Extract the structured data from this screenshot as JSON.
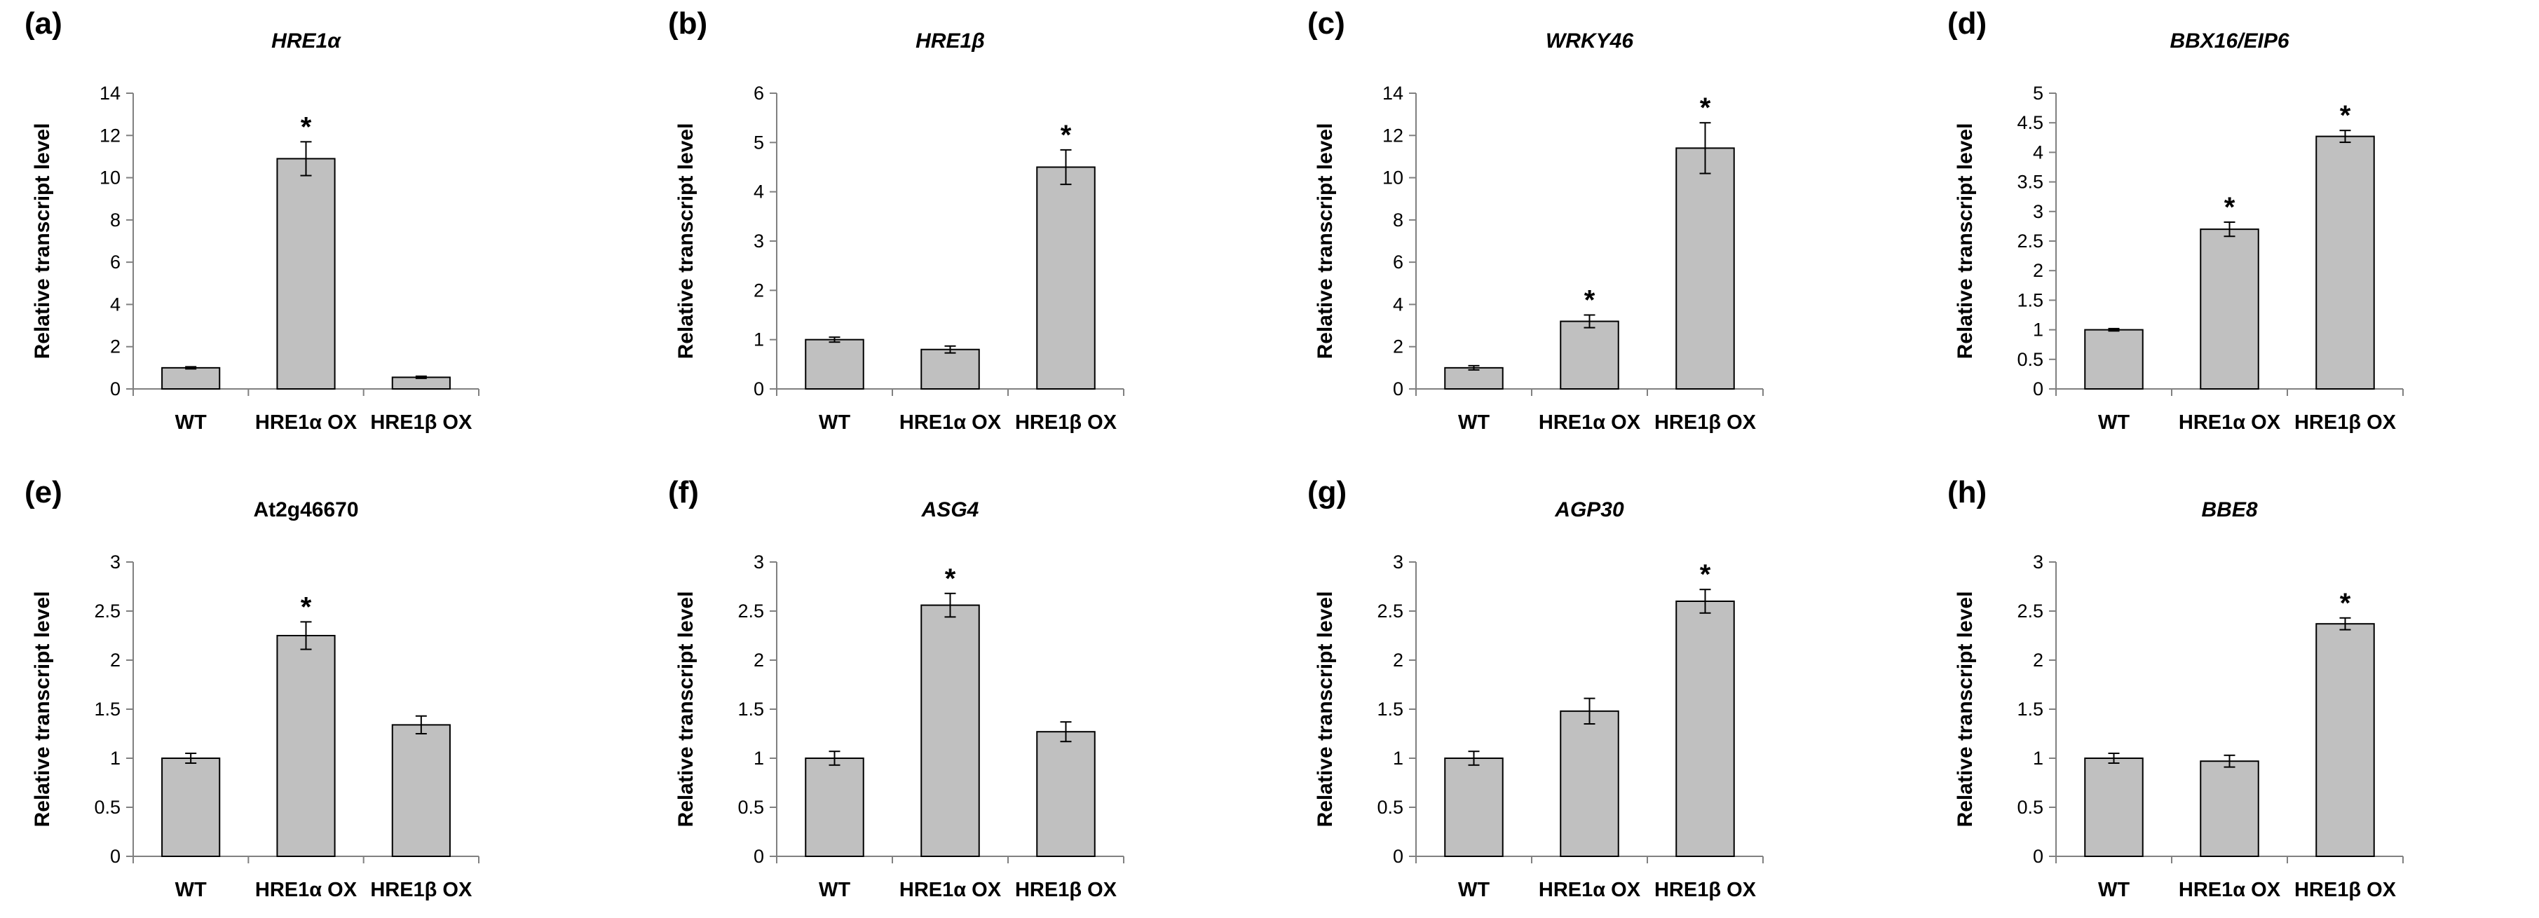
{
  "chart_data": [
    {
      "type": "bar",
      "panel": "(a)",
      "title": "HRE1α",
      "title_italic": true,
      "ylabel": "Relative transcript level",
      "ylim": [
        0,
        14
      ],
      "ystep": 2,
      "yticks": [
        "0",
        "2",
        "4",
        "6",
        "8",
        "10",
        "12",
        "14"
      ],
      "categories": [
        "WT",
        "HRE1α OX",
        "HRE1β OX"
      ],
      "values": [
        1.0,
        10.9,
        0.55
      ],
      "errors": [
        0.05,
        0.8,
        0.05
      ],
      "significant": [
        false,
        true,
        false
      ],
      "marker": "*"
    },
    {
      "type": "bar",
      "panel": "(b)",
      "title": "HRE1β",
      "title_italic": true,
      "ylabel": "Relative transcript level",
      "ylim": [
        0,
        6
      ],
      "ystep": 1,
      "yticks": [
        "0",
        "1",
        "2",
        "3",
        "4",
        "5",
        "6"
      ],
      "categories": [
        "WT",
        "HRE1α OX",
        "HRE1β OX"
      ],
      "values": [
        1.0,
        0.8,
        4.5
      ],
      "errors": [
        0.05,
        0.07,
        0.35
      ],
      "significant": [
        false,
        false,
        true
      ],
      "marker": "*"
    },
    {
      "type": "bar",
      "panel": "(c)",
      "title": "WRKY46",
      "title_italic": true,
      "ylabel": "Relative transcript level",
      "ylim": [
        0,
        14
      ],
      "ystep": 2,
      "yticks": [
        "0",
        "2",
        "4",
        "6",
        "8",
        "10",
        "12",
        "14"
      ],
      "categories": [
        "WT",
        "HRE1α OX",
        "HRE1β OX"
      ],
      "values": [
        1.0,
        3.2,
        11.4
      ],
      "errors": [
        0.1,
        0.3,
        1.2
      ],
      "significant": [
        false,
        true,
        true
      ],
      "marker": "*"
    },
    {
      "type": "bar",
      "panel": "(d)",
      "title": "BBX16/EIP6",
      "title_italic": true,
      "ylabel": "Relative transcript level",
      "ylim": [
        0,
        5
      ],
      "ystep": 0.5,
      "yticks": [
        "0",
        "0.5",
        "1",
        "1.5",
        "2",
        "2.5",
        "3",
        "3.5",
        "4",
        "4.5",
        "5"
      ],
      "categories": [
        "WT",
        "HRE1α OX",
        "HRE1β OX"
      ],
      "values": [
        1.0,
        2.7,
        4.27
      ],
      "errors": [
        0.02,
        0.12,
        0.1
      ],
      "significant": [
        false,
        true,
        true
      ],
      "marker": "*"
    },
    {
      "type": "bar",
      "panel": "(e)",
      "title": "At2g46670",
      "title_italic": false,
      "ylabel": "Relative transcript level",
      "ylim": [
        0,
        3
      ],
      "ystep": 0.5,
      "yticks": [
        "0",
        "0.5",
        "1",
        "1.5",
        "2",
        "2.5",
        "3"
      ],
      "categories": [
        "WT",
        "HRE1α OX",
        "HRE1β OX"
      ],
      "values": [
        1.0,
        2.25,
        1.34
      ],
      "errors": [
        0.05,
        0.14,
        0.09
      ],
      "significant": [
        false,
        true,
        false
      ],
      "marker": "*"
    },
    {
      "type": "bar",
      "panel": "(f)",
      "title": "ASG4",
      "title_italic": true,
      "ylabel": "Relative transcript level",
      "ylim": [
        0,
        3
      ],
      "ystep": 0.5,
      "yticks": [
        "0",
        "0.5",
        "1",
        "1.5",
        "2",
        "2.5",
        "3"
      ],
      "categories": [
        "WT",
        "HRE1α OX",
        "HRE1β OX"
      ],
      "values": [
        1.0,
        2.56,
        1.27
      ],
      "errors": [
        0.07,
        0.12,
        0.1
      ],
      "significant": [
        false,
        true,
        false
      ],
      "marker": "*"
    },
    {
      "type": "bar",
      "panel": "(g)",
      "title": "AGP30",
      "title_italic": true,
      "ylabel": "Relative transcript level",
      "ylim": [
        0,
        3
      ],
      "ystep": 0.5,
      "yticks": [
        "0",
        "0.5",
        "1",
        "1.5",
        "2",
        "2.5",
        "3"
      ],
      "categories": [
        "WT",
        "HRE1α OX",
        "HRE1β OX"
      ],
      "values": [
        1.0,
        1.48,
        2.6
      ],
      "errors": [
        0.07,
        0.13,
        0.12
      ],
      "significant": [
        false,
        false,
        true
      ],
      "marker": "*"
    },
    {
      "type": "bar",
      "panel": "(h)",
      "title": "BBE8",
      "title_italic": true,
      "ylabel": "Relative transcript level",
      "ylim": [
        0,
        3
      ],
      "ystep": 0.5,
      "yticks": [
        "0",
        "0.5",
        "1",
        "1.5",
        "2",
        "2.5",
        "3"
      ],
      "categories": [
        "WT",
        "HRE1α OX",
        "HRE1β OX"
      ],
      "values": [
        1.0,
        0.97,
        2.37
      ],
      "errors": [
        0.05,
        0.06,
        0.06
      ],
      "significant": [
        false,
        false,
        true
      ],
      "marker": "*"
    }
  ]
}
